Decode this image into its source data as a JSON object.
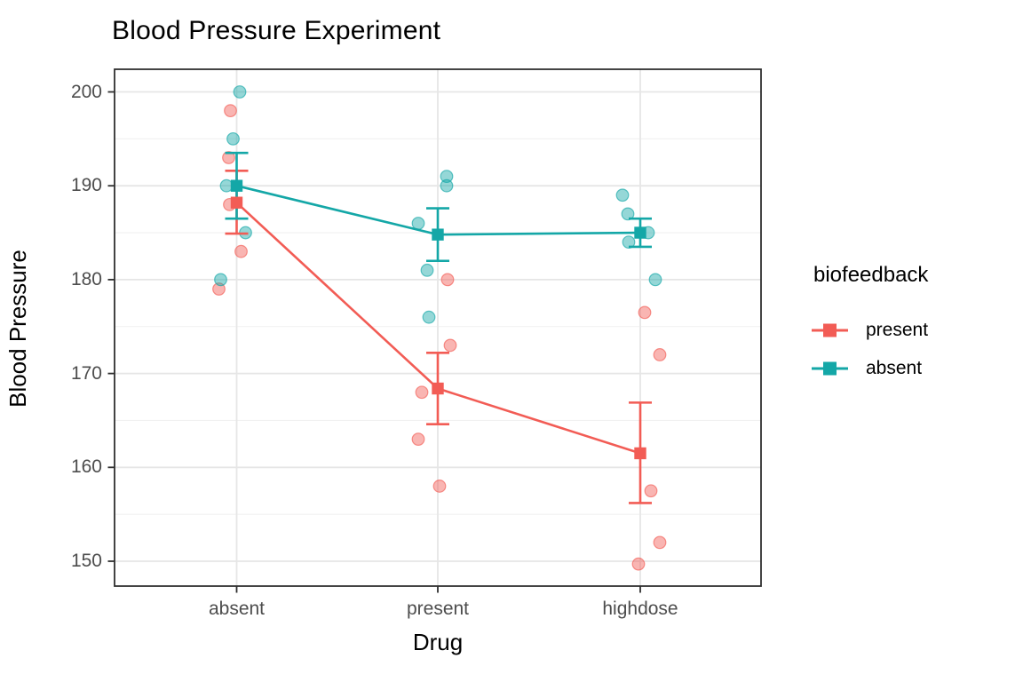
{
  "title": "Blood Pressure Experiment",
  "x_axis": {
    "label": "Drug",
    "tick_labels": [
      "absent",
      "present",
      "highdose"
    ]
  },
  "y_axis": {
    "label": "Blood Pressure",
    "tick_labels": [
      "150",
      "160",
      "170",
      "180",
      "190",
      "200"
    ]
  },
  "legend": {
    "title": "biofeedback",
    "entries": [
      {
        "label": "present",
        "color": "#F25C55"
      },
      {
        "label": "absent",
        "color": "#14A7A7"
      }
    ]
  },
  "colors": {
    "present_series": "#F25C55",
    "absent_series": "#14A7A7",
    "panel_border": "#2f2f2f",
    "grid_major": "#e6e6e6",
    "grid_minor": "#f1f1f1",
    "tick_text": "#4d4d4d",
    "background": "#ffffff"
  },
  "chart_data": {
    "type": "scatter",
    "subtype": "interaction-plot: jittered points + group means with SE error bars connected by lines",
    "title": "Blood Pressure Experiment",
    "xlabel": "Drug",
    "ylabel": "Blood Pressure",
    "categories": [
      "absent",
      "present",
      "highdose"
    ],
    "y_ticks_major": [
      150,
      160,
      170,
      180,
      190,
      200
    ],
    "y_ticks_minor": [
      155,
      165,
      175,
      185,
      195
    ],
    "ylim": [
      147.3,
      202.4
    ],
    "grid": true,
    "legend_title": "biofeedback",
    "legend_position": "right",
    "series": [
      {
        "name": "present",
        "color": "#F25C55",
        "means": [
          188.2,
          168.4,
          161.5
        ],
        "se": [
          3.4,
          3.83,
          5.39
        ],
        "se_lower": [
          184.9,
          164.6,
          156.2
        ],
        "se_upper": [
          191.6,
          172.2,
          166.9
        ],
        "points": [
          [
            {
              "v": 198,
              "dx": -7
            },
            {
              "v": 193,
              "dx": -9
            },
            {
              "v": 188,
              "dx": -8
            },
            {
              "v": 183,
              "dx": 5
            },
            {
              "v": 179,
              "dx": -20
            }
          ],
          [
            {
              "v": 180,
              "dx": 11
            },
            {
              "v": 173,
              "dx": 14
            },
            {
              "v": 168,
              "dx": -18
            },
            {
              "v": 163,
              "dx": -22
            },
            {
              "v": 158,
              "dx": 2
            }
          ],
          [
            {
              "v": 176.5,
              "dx": 5
            },
            {
              "v": 172,
              "dx": 22
            },
            {
              "v": 157.5,
              "dx": 12
            },
            {
              "v": 152,
              "dx": 22
            },
            {
              "v": 149.7,
              "dx": -2
            }
          ]
        ]
      },
      {
        "name": "absent",
        "color": "#14A7A7",
        "means": [
          190.0,
          184.8,
          185.0
        ],
        "se": [
          3.54,
          2.82,
          1.52
        ],
        "se_lower": [
          186.5,
          182.0,
          183.5
        ],
        "se_upper": [
          193.5,
          187.6,
          186.5
        ],
        "points": [
          [
            {
              "v": 200,
              "dx": 3.5
            },
            {
              "v": 195,
              "dx": -4
            },
            {
              "v": 190,
              "dx": -11.5
            },
            {
              "v": 185,
              "dx": 10
            },
            {
              "v": 180,
              "dx": -18
            }
          ],
          [
            {
              "v": 191,
              "dx": 10
            },
            {
              "v": 190,
              "dx": 10
            },
            {
              "v": 186,
              "dx": -22
            },
            {
              "v": 181,
              "dx": -12
            },
            {
              "v": 176,
              "dx": -10
            }
          ],
          [
            {
              "v": 189,
              "dx": -20
            },
            {
              "v": 187,
              "dx": -14
            },
            {
              "v": 185,
              "dx": 9
            },
            {
              "v": 184,
              "dx": -13
            },
            {
              "v": 180,
              "dx": 17
            }
          ]
        ]
      }
    ]
  }
}
